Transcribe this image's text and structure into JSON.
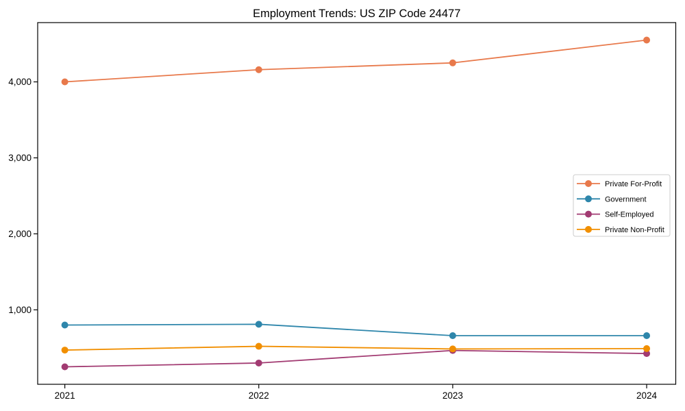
{
  "page": {
    "background": "#ffffff"
  },
  "chart_data": {
    "type": "line",
    "title": "Employment Trends: US ZIP Code 24477",
    "x": [
      2021,
      2022,
      2023,
      2024
    ],
    "x_tick_labels": [
      "2021",
      "2022",
      "2023",
      "2024"
    ],
    "xlim": [
      2020.86,
      2024.15
    ],
    "ylim": [
      20,
      4780
    ],
    "y_ticks": [
      1000,
      2000,
      3000,
      4000
    ],
    "y_tick_labels": [
      "1,000",
      "2,000",
      "3,000",
      "4,000"
    ],
    "xlabel": "",
    "ylabel": "",
    "grid": false,
    "marker": "circle",
    "axis_color": "#000000",
    "legend": {
      "position": "center-right",
      "border_color": "#cccccc",
      "background": "#ffffff"
    },
    "series": [
      {
        "name": "Private For-Profit",
        "color": "#E8794B",
        "values": [
          4000,
          4160,
          4250,
          4550
        ]
      },
      {
        "name": "Government",
        "color": "#2E86AB",
        "values": [
          800,
          810,
          660,
          660
        ]
      },
      {
        "name": "Self-Employed",
        "color": "#A23B72",
        "values": [
          250,
          300,
          465,
          425
        ]
      },
      {
        "name": "Private Non-Profit",
        "color": "#F18F01",
        "values": [
          470,
          520,
          485,
          490
        ]
      }
    ]
  }
}
